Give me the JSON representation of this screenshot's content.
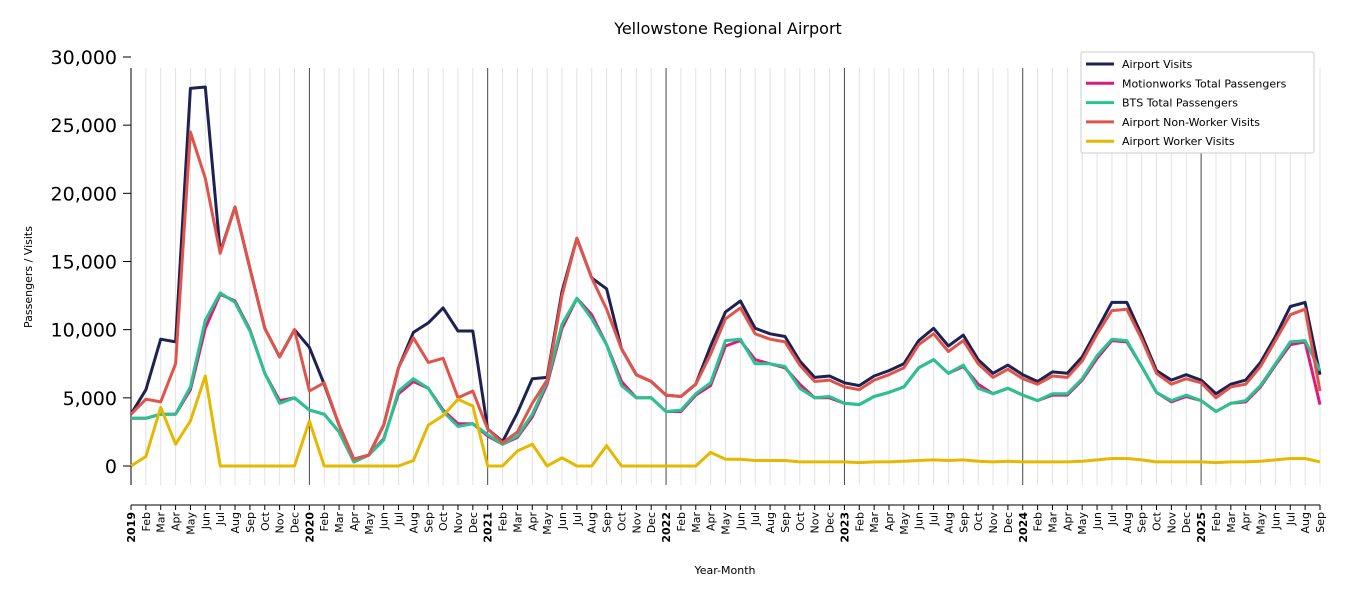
{
  "chart_data": {
    "type": "line",
    "title": "Yellowstone Regional Airport",
    "xlabel": "Year-Month",
    "ylabel": "Passengers / Visits",
    "ylim": [
      0,
      30000
    ],
    "y_ticks": [
      0,
      5000,
      10000,
      15000,
      20000,
      25000,
      30000
    ],
    "y_tick_labels": [
      "0",
      "5,000",
      "10,000",
      "15,000",
      "20,000",
      "25,000",
      "30,000"
    ],
    "legend_position": "top-right",
    "grid": "vertical monthly lines, bold year lines",
    "x_tick_labels": [
      "2019",
      "Feb",
      "Mar",
      "Apr",
      "May",
      "Jun",
      "Jul",
      "Aug",
      "Sep",
      "Oct",
      "Nov",
      "Dec",
      "2020",
      "Feb",
      "Mar",
      "Apr",
      "May",
      "Jun",
      "Jul",
      "Aug",
      "Sep",
      "Oct",
      "Nov",
      "Dec",
      "2021",
      "Feb",
      "Mar",
      "Apr",
      "May",
      "Jun",
      "Jul",
      "Aug",
      "Sep",
      "Oct",
      "Nov",
      "Dec",
      "2022",
      "Feb",
      "Mar",
      "Apr",
      "May",
      "Jun",
      "Jul",
      "Aug",
      "Sep",
      "Oct",
      "Nov",
      "Dec",
      "2023",
      "Feb",
      "Mar",
      "Apr",
      "May",
      "Jun",
      "Jul",
      "Aug",
      "Sep",
      "Oct",
      "Nov",
      "Dec",
      "2024",
      "Feb",
      "Mar",
      "Apr",
      "May",
      "Jun",
      "Jul",
      "Aug",
      "Sep",
      "Oct",
      "Nov",
      "Dec",
      "2025",
      "Feb",
      "Mar",
      "Apr",
      "May",
      "Jun",
      "Jul",
      "Aug",
      "Sep"
    ],
    "series": [
      {
        "name": "Airport Visits",
        "color": "#1f2152",
        "values": [
          3800,
          5600,
          9300,
          9100,
          27700,
          27800,
          15700,
          19000,
          14500,
          10100,
          8000,
          10000,
          8700,
          6000,
          3000,
          500,
          800,
          3000,
          7200,
          9800,
          10500,
          11600,
          9900,
          9900,
          2700,
          1800,
          3900,
          6400,
          6500,
          12800,
          16700,
          13800,
          13000,
          8600,
          6700,
          6200,
          5200,
          5100,
          6000,
          8800,
          11300,
          12100,
          10100,
          9700,
          9500,
          7700,
          6500,
          6600,
          6100,
          5900,
          6600,
          7000,
          7500,
          9200,
          10100,
          8800,
          9600,
          7800,
          6800,
          7400,
          6700,
          6200,
          6900,
          6800,
          8000,
          10000,
          12000,
          12000,
          9600,
          7000,
          6300,
          6700,
          6300,
          5300,
          6000,
          6300,
          7600,
          9500,
          11700,
          12000,
          6700
        ]
      },
      {
        "name": "Motionworks Total Passengers",
        "color": "#d81b7d",
        "values": [
          3500,
          3500,
          3800,
          3800,
          5600,
          10100,
          12600,
          12100,
          10000,
          6800,
          4800,
          5000,
          4100,
          3800,
          2500,
          300,
          800,
          2000,
          5300,
          6200,
          5700,
          4100,
          3100,
          3100,
          2200,
          1600,
          2100,
          3600,
          6000,
          10100,
          12300,
          11100,
          8900,
          6200,
          5000,
          5000,
          4000,
          4000,
          5200,
          5900,
          8800,
          9200,
          7800,
          7500,
          7200,
          6000,
          5000,
          5000,
          4600,
          4500,
          5100,
          5400,
          5800,
          7200,
          7800,
          6800,
          7300,
          6000,
          5300,
          5700,
          5200,
          4800,
          5200,
          5200,
          6300,
          7900,
          9200,
          9100,
          7300,
          5400,
          4700,
          5100,
          4800,
          4000,
          4600,
          4700,
          5800,
          7400,
          8900,
          9100,
          4500
        ]
      },
      {
        "name": "BTS Total Passengers",
        "color": "#26c490",
        "values": [
          3500,
          3500,
          3800,
          3800,
          5800,
          10700,
          12700,
          12000,
          9900,
          6800,
          4600,
          5000,
          4100,
          3800,
          2500,
          300,
          800,
          1900,
          5500,
          6400,
          5700,
          4000,
          2900,
          3100,
          2300,
          1600,
          2200,
          3800,
          6200,
          10400,
          12300,
          10800,
          8900,
          5900,
          5000,
          5000,
          4000,
          4100,
          5300,
          6100,
          9200,
          9300,
          7500,
          7500,
          7300,
          5700,
          5000,
          5100,
          4600,
          4500,
          5100,
          5400,
          5800,
          7200,
          7800,
          6800,
          7400,
          5700,
          5300,
          5700,
          5200,
          4800,
          5300,
          5300,
          6400,
          8100,
          9300,
          9200,
          7300,
          5400,
          4800,
          5200,
          4800,
          4000,
          4600,
          4800,
          5900,
          7500,
          9100,
          9200,
          7000
        ]
      },
      {
        "name": "Airport Non-Worker Visits",
        "color": "#e0544b",
        "values": [
          3800,
          4900,
          4700,
          7500,
          24500,
          21100,
          15600,
          19000,
          14500,
          10100,
          8000,
          10000,
          5500,
          6100,
          3000,
          500,
          800,
          3000,
          7200,
          9400,
          7600,
          7900,
          5000,
          5500,
          2700,
          1700,
          2500,
          4600,
          6300,
          12500,
          16700,
          13800,
          11500,
          8600,
          6700,
          6200,
          5200,
          5100,
          6000,
          8200,
          10800,
          11600,
          9700,
          9300,
          9100,
          7400,
          6200,
          6300,
          5800,
          5600,
          6300,
          6700,
          7200,
          8900,
          9700,
          8400,
          9200,
          7500,
          6500,
          7100,
          6400,
          6000,
          6600,
          6500,
          7700,
          9700,
          11400,
          11500,
          9300,
          6800,
          6000,
          6400,
          6100,
          5000,
          5800,
          6000,
          7300,
          9200,
          11100,
          11500,
          5500
        ]
      },
      {
        "name": "Airport Worker Visits",
        "color": "#e6b800",
        "values": [
          0,
          700,
          4300,
          1600,
          3300,
          6600,
          0,
          0,
          0,
          0,
          0,
          0,
          3300,
          0,
          0,
          0,
          0,
          0,
          0,
          400,
          3000,
          3700,
          4900,
          4400,
          0,
          0,
          1100,
          1600,
          0,
          600,
          0,
          0,
          1500,
          0,
          0,
          0,
          0,
          0,
          0,
          1000,
          500,
          500,
          400,
          400,
          400,
          300,
          300,
          300,
          300,
          250,
          300,
          300,
          350,
          400,
          450,
          400,
          450,
          350,
          300,
          350,
          300,
          300,
          300,
          300,
          350,
          450,
          550,
          550,
          450,
          300,
          300,
          300,
          300,
          250,
          300,
          300,
          350,
          450,
          550,
          550,
          300
        ]
      }
    ]
  }
}
